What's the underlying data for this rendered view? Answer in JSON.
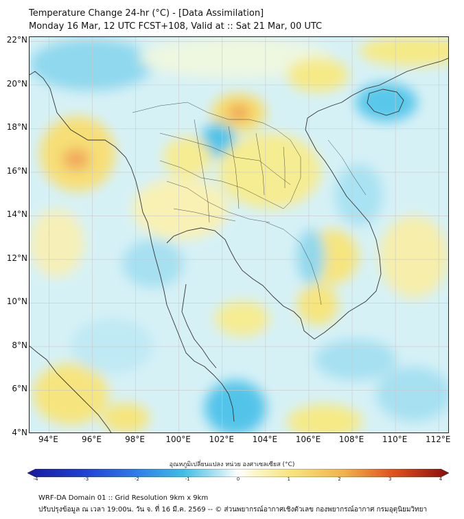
{
  "header": {
    "title": "Temperature Change 24-hr (°C) - [Data Assimilation]",
    "subtitle": "Monday 16 Mar, 12 UTC FCST+108, Valid at :: Sat 21 Mar, 00 UTC"
  },
  "map": {
    "lat_labels": [
      "22°N",
      "20°N",
      "18°N",
      "16°N",
      "14°N",
      "12°N",
      "10°N",
      "8°N",
      "6°N",
      "4°N"
    ],
    "lon_labels": [
      "94°E",
      "96°E",
      "98°E",
      "100°E",
      "102°E",
      "104°E",
      "106°E",
      "108°E",
      "110°E",
      "112°E"
    ],
    "lat_range": [
      4,
      22.2
    ],
    "lon_range": [
      93.1,
      112.5
    ],
    "colors": {
      "ocean_base": "#cdeef4",
      "land_base": "#fbf6c8",
      "warm": "#f7e37a",
      "hot": "#f2a35a",
      "cool": "#7fd4ec",
      "cold": "#3fbde6",
      "coast": "#333333",
      "grid": "#c9c9c9"
    }
  },
  "colorbar": {
    "title": "อุณหภูมิเปลี่ยนแปลง หน่วย องศาเซลเซียส (°C)",
    "tick_labels": [
      "-4",
      "-3",
      "-2",
      "-1",
      "0",
      "1",
      "2",
      "3",
      "4"
    ],
    "range": [
      -4,
      4
    ]
  },
  "footer": {
    "line1": "WRF-DA Domain 01 :: Grid Resolution 9km x 9km",
    "line2": "ปรับปรุงข้อมูล ณ เวลา 19:00น. วัน จ. ที่ 16 มี.ค. 2569 -- © ส่วนพยากรณ์อากาศเชิงตัวเลข กองพยากรณ์อากาศ กรมอุตุนิยมวิทยา"
  }
}
